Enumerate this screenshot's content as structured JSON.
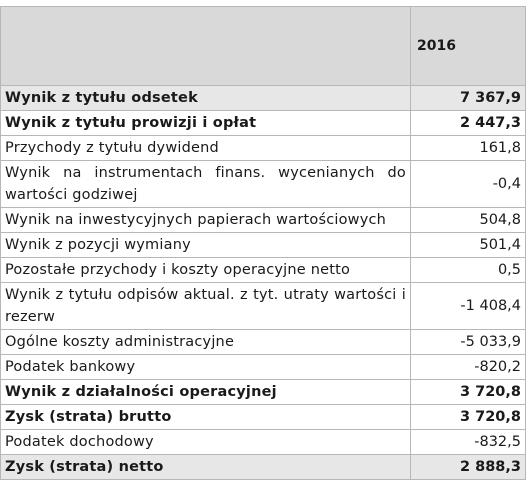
{
  "header": {
    "year": "2016"
  },
  "rows": [
    {
      "label": "Wynik z tytułu odsetek",
      "value": "7 367,9"
    },
    {
      "label": "Wynik z tytułu prowizji i opłat",
      "value": "2 447,3"
    },
    {
      "label": "Przychody z tytułu dywidend",
      "value": "161,8"
    },
    {
      "label": "Wynik na instrumentach finans. wycenianych do wartości godziwej",
      "value": "-0,4"
    },
    {
      "label": "Wynik na inwestycyjnych papierach wartościowych",
      "value": "504,8"
    },
    {
      "label": "Wynik z pozycji wymiany",
      "value": "501,4"
    },
    {
      "label": "Pozostałe przychody i koszty operacyjne netto",
      "value": "0,5"
    },
    {
      "label": "Wynik z tytułu odpisów aktual. z tyt. utraty wartości i rezerw",
      "value": "-1 408,4"
    },
    {
      "label": "Ogólne koszty administracyjne",
      "value": "-5 033,9"
    },
    {
      "label": "Podatek bankowy",
      "value": "-820,2"
    },
    {
      "label": "Wynik z działalności operacyjnej",
      "value": "3 720,8"
    },
    {
      "label": "Zysk (strata) brutto",
      "value": "3 720,8"
    },
    {
      "label": "Podatek dochodowy",
      "value": "-832,5"
    },
    {
      "label": "Zysk (strata) netto",
      "value": "2 888,3"
    }
  ],
  "colors": {
    "header_bg": "#d9d9d9",
    "shaded_row_bg": "#e7e7e7",
    "border": "#b7b7b7"
  }
}
